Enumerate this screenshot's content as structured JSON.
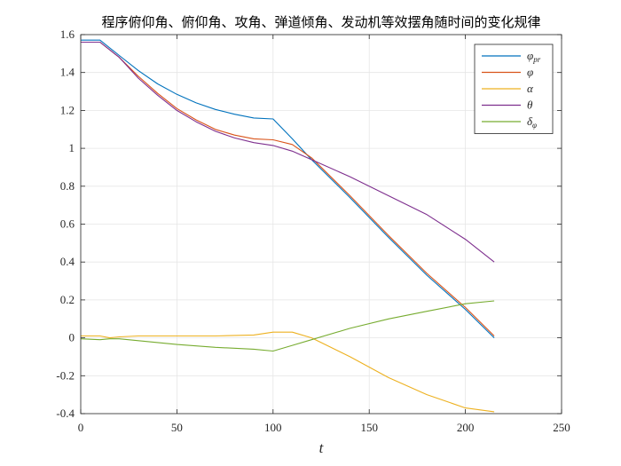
{
  "chart_data": {
    "type": "line",
    "title": "程序俯仰角、俯仰角、攻角、弹道倾角、发动机等效摆角随时间的变化规律",
    "xlabel": "t",
    "ylabel": "",
    "xlim": [
      0,
      250
    ],
    "ylim": [
      -0.4,
      1.6
    ],
    "xticks": [
      0,
      50,
      100,
      150,
      200,
      250
    ],
    "xtick_labels": [
      "0",
      "50",
      "100",
      "150",
      "200",
      "250"
    ],
    "yticks": [
      -0.4,
      -0.2,
      0,
      0.2,
      0.4,
      0.6,
      0.8,
      1,
      1.2,
      1.4,
      1.6
    ],
    "ytick_labels": [
      "-0.4",
      "-0.2",
      "0",
      "0.2",
      "0.4",
      "0.6",
      "0.8",
      "1",
      "1.2",
      "1.4",
      "1.6"
    ],
    "grid": true,
    "legend_position": "top-right",
    "series": [
      {
        "name": "φ_pr",
        "legend_main": "φ",
        "legend_sub": "pr",
        "color": "#0072BD",
        "x": [
          0,
          10,
          20,
          30,
          40,
          50,
          60,
          70,
          80,
          90,
          100,
          110,
          120,
          140,
          160,
          180,
          200,
          215
        ],
        "y": [
          1.571,
          1.571,
          1.49,
          1.41,
          1.34,
          1.285,
          1.24,
          1.205,
          1.18,
          1.16,
          1.155,
          1.05,
          0.94,
          0.74,
          0.53,
          0.33,
          0.15,
          0.0
        ]
      },
      {
        "name": "φ",
        "legend_main": "φ",
        "legend_sub": "",
        "color": "#D95319",
        "x": [
          0,
          10,
          20,
          30,
          40,
          50,
          60,
          70,
          80,
          90,
          100,
          110,
          120,
          140,
          160,
          180,
          200,
          215
        ],
        "y": [
          1.56,
          1.56,
          1.48,
          1.38,
          1.29,
          1.21,
          1.15,
          1.1,
          1.07,
          1.05,
          1.045,
          1.02,
          0.95,
          0.75,
          0.54,
          0.34,
          0.16,
          0.01
        ]
      },
      {
        "name": "α",
        "legend_main": "α",
        "legend_sub": "",
        "color": "#EDB120",
        "x": [
          0,
          10,
          15,
          20,
          30,
          50,
          70,
          90,
          100,
          110,
          120,
          140,
          160,
          180,
          200,
          215
        ],
        "y": [
          0.01,
          0.01,
          0.0,
          0.005,
          0.01,
          0.01,
          0.01,
          0.015,
          0.03,
          0.03,
          0.0,
          -0.1,
          -0.21,
          -0.3,
          -0.37,
          -0.39
        ]
      },
      {
        "name": "θ",
        "legend_main": "θ",
        "legend_sub": "",
        "color": "#7E2F8E",
        "x": [
          0,
          10,
          20,
          30,
          40,
          50,
          60,
          70,
          80,
          90,
          100,
          110,
          120,
          140,
          160,
          180,
          200,
          215
        ],
        "y": [
          1.56,
          1.56,
          1.48,
          1.37,
          1.28,
          1.2,
          1.14,
          1.09,
          1.055,
          1.03,
          1.015,
          0.985,
          0.94,
          0.85,
          0.75,
          0.65,
          0.52,
          0.4
        ]
      },
      {
        "name": "δ_φ",
        "legend_main": "δ",
        "legend_sub": "φ",
        "color": "#77AC30",
        "x": [
          0,
          10,
          15,
          20,
          30,
          50,
          70,
          90,
          100,
          110,
          120,
          140,
          160,
          180,
          200,
          215
        ],
        "y": [
          -0.005,
          -0.01,
          -0.005,
          -0.005,
          -0.015,
          -0.035,
          -0.05,
          -0.06,
          -0.07,
          -0.04,
          -0.01,
          0.05,
          0.1,
          0.14,
          0.18,
          0.195
        ]
      }
    ]
  }
}
